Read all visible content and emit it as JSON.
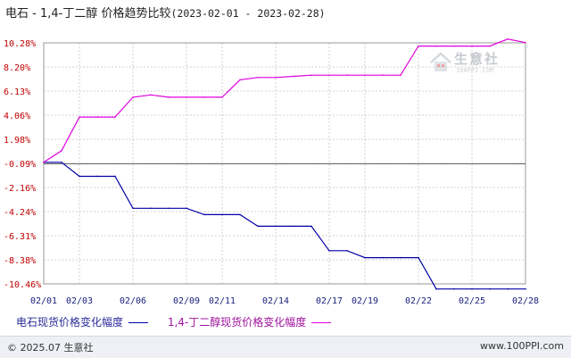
{
  "title": {
    "main": "电石 - 1,4-丁二醇 价格趋势比较",
    "range": "(2023-02-01 - 2023-02-28)"
  },
  "chart_data": {
    "type": "line",
    "title": "电石 - 1,4-丁二醇 价格趋势比较(2023-02-01 - 2023-02-28)",
    "x_ticks": [
      "02/01",
      "02/03",
      "02/06",
      "02/09",
      "02/11",
      "02/14",
      "02/17",
      "02/19",
      "02/22",
      "02/25",
      "02/28"
    ],
    "y_ticks": [
      "10.28%",
      "8.20%",
      "6.13%",
      "4.06%",
      "1.98%",
      "-0.09%",
      "-2.16%",
      "-4.24%",
      "-6.31%",
      "-8.38%",
      "-10.46%"
    ],
    "ylim": [
      -10.46,
      10.28
    ],
    "grid": true,
    "legend_position": "bottom",
    "series": [
      {
        "name": "电石现货价格变化幅度",
        "color": "#0000aa",
        "points": [
          [
            "02/01",
            0.0
          ],
          [
            "02/02",
            0.0
          ],
          [
            "02/03",
            -1.2
          ],
          [
            "02/04",
            -1.2
          ],
          [
            "02/05",
            -1.2
          ],
          [
            "02/06",
            -3.95
          ],
          [
            "02/07",
            -3.95
          ],
          [
            "02/08",
            -3.95
          ],
          [
            "02/09",
            -3.95
          ],
          [
            "02/10",
            -4.5
          ],
          [
            "02/11",
            -4.5
          ],
          [
            "02/12",
            -4.5
          ],
          [
            "02/13",
            -5.5
          ],
          [
            "02/14",
            -5.5
          ],
          [
            "02/15",
            -5.5
          ],
          [
            "02/16",
            -5.5
          ],
          [
            "02/17",
            -7.6
          ],
          [
            "02/18",
            -7.6
          ],
          [
            "02/19",
            -8.2
          ],
          [
            "02/20",
            -8.2
          ],
          [
            "02/21",
            -8.2
          ],
          [
            "02/22",
            -8.2
          ],
          [
            "02/23",
            -10.9
          ],
          [
            "02/24",
            -10.9
          ],
          [
            "02/25",
            -10.9
          ],
          [
            "02/26",
            -10.9
          ],
          [
            "02/27",
            -10.9
          ],
          [
            "02/28",
            -10.9
          ]
        ]
      },
      {
        "name": "1,4-丁二醇现货价格变化幅度",
        "color": "#e000e0",
        "points": [
          [
            "02/01",
            0.0
          ],
          [
            "02/02",
            1.0
          ],
          [
            "02/03",
            3.9
          ],
          [
            "02/04",
            3.9
          ],
          [
            "02/05",
            3.9
          ],
          [
            "02/06",
            5.6
          ],
          [
            "02/07",
            5.8
          ],
          [
            "02/08",
            5.6
          ],
          [
            "02/09",
            5.6
          ],
          [
            "02/10",
            5.6
          ],
          [
            "02/11",
            5.6
          ],
          [
            "02/12",
            7.1
          ],
          [
            "02/13",
            7.3
          ],
          [
            "02/14",
            7.3
          ],
          [
            "02/15",
            7.4
          ],
          [
            "02/16",
            7.5
          ],
          [
            "02/17",
            7.5
          ],
          [
            "02/18",
            7.5
          ],
          [
            "02/19",
            7.5
          ],
          [
            "02/20",
            7.5
          ],
          [
            "02/21",
            7.5
          ],
          [
            "02/22",
            10.0
          ],
          [
            "02/23",
            10.0
          ],
          [
            "02/24",
            10.0
          ],
          [
            "02/25",
            10.0
          ],
          [
            "02/26",
            10.0
          ],
          [
            "02/27",
            10.6
          ],
          [
            "02/28",
            10.3
          ]
        ]
      }
    ]
  },
  "legend": {
    "series1": "电石现货价格变化幅度",
    "series2": "1,4-丁二醇现货价格变化幅度"
  },
  "watermark": {
    "text": "生意社",
    "url": "100PPI.COM"
  },
  "footer": {
    "copyright": "© 2025.07 生意社",
    "site": "www.100PPI.com"
  }
}
